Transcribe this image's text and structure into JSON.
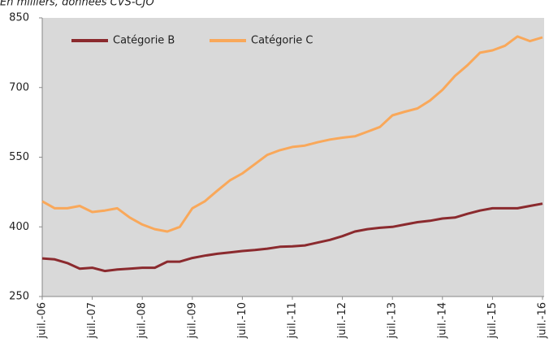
{
  "chart_data": {
    "type": "line",
    "subtitle": "En milliers, données CVS-CJO",
    "categories": [
      "juil.-06",
      null,
      null,
      null,
      "juil.-07",
      null,
      null,
      null,
      "juil.-08",
      null,
      null,
      null,
      "juil.-09",
      null,
      null,
      null,
      "juil.-10",
      null,
      null,
      null,
      "juil.-11",
      null,
      null,
      null,
      "juil.-12",
      null,
      null,
      null,
      "juil.-13",
      null,
      null,
      null,
      "juil.-14",
      null,
      null,
      null,
      "juil.-15",
      null,
      null,
      null,
      "juil.-16"
    ],
    "series": [
      {
        "name": "Catégorie B",
        "color": "#8b2a2e",
        "values": [
          332,
          330,
          322,
          310,
          312,
          305,
          308,
          310,
          312,
          312,
          325,
          325,
          333,
          338,
          342,
          345,
          348,
          350,
          353,
          357,
          358,
          360,
          366,
          372,
          380,
          390,
          395,
          398,
          400,
          405,
          410,
          413,
          418,
          420,
          428,
          435,
          440,
          440,
          440,
          445,
          450
        ]
      },
      {
        "name": "Catégorie C",
        "color": "#f9a85a",
        "values": [
          455,
          440,
          440,
          445,
          432,
          435,
          440,
          420,
          405,
          395,
          390,
          400,
          440,
          455,
          478,
          500,
          515,
          535,
          555,
          565,
          572,
          575,
          582,
          588,
          592,
          595,
          605,
          615,
          640,
          648,
          655,
          672,
          695,
          725,
          748,
          775,
          780,
          790,
          810,
          800,
          808
        ]
      }
    ],
    "ylim": [
      250,
      850
    ],
    "yticks": [
      250,
      400,
      550,
      700,
      850
    ],
    "grid": false,
    "legend": "top-left"
  }
}
